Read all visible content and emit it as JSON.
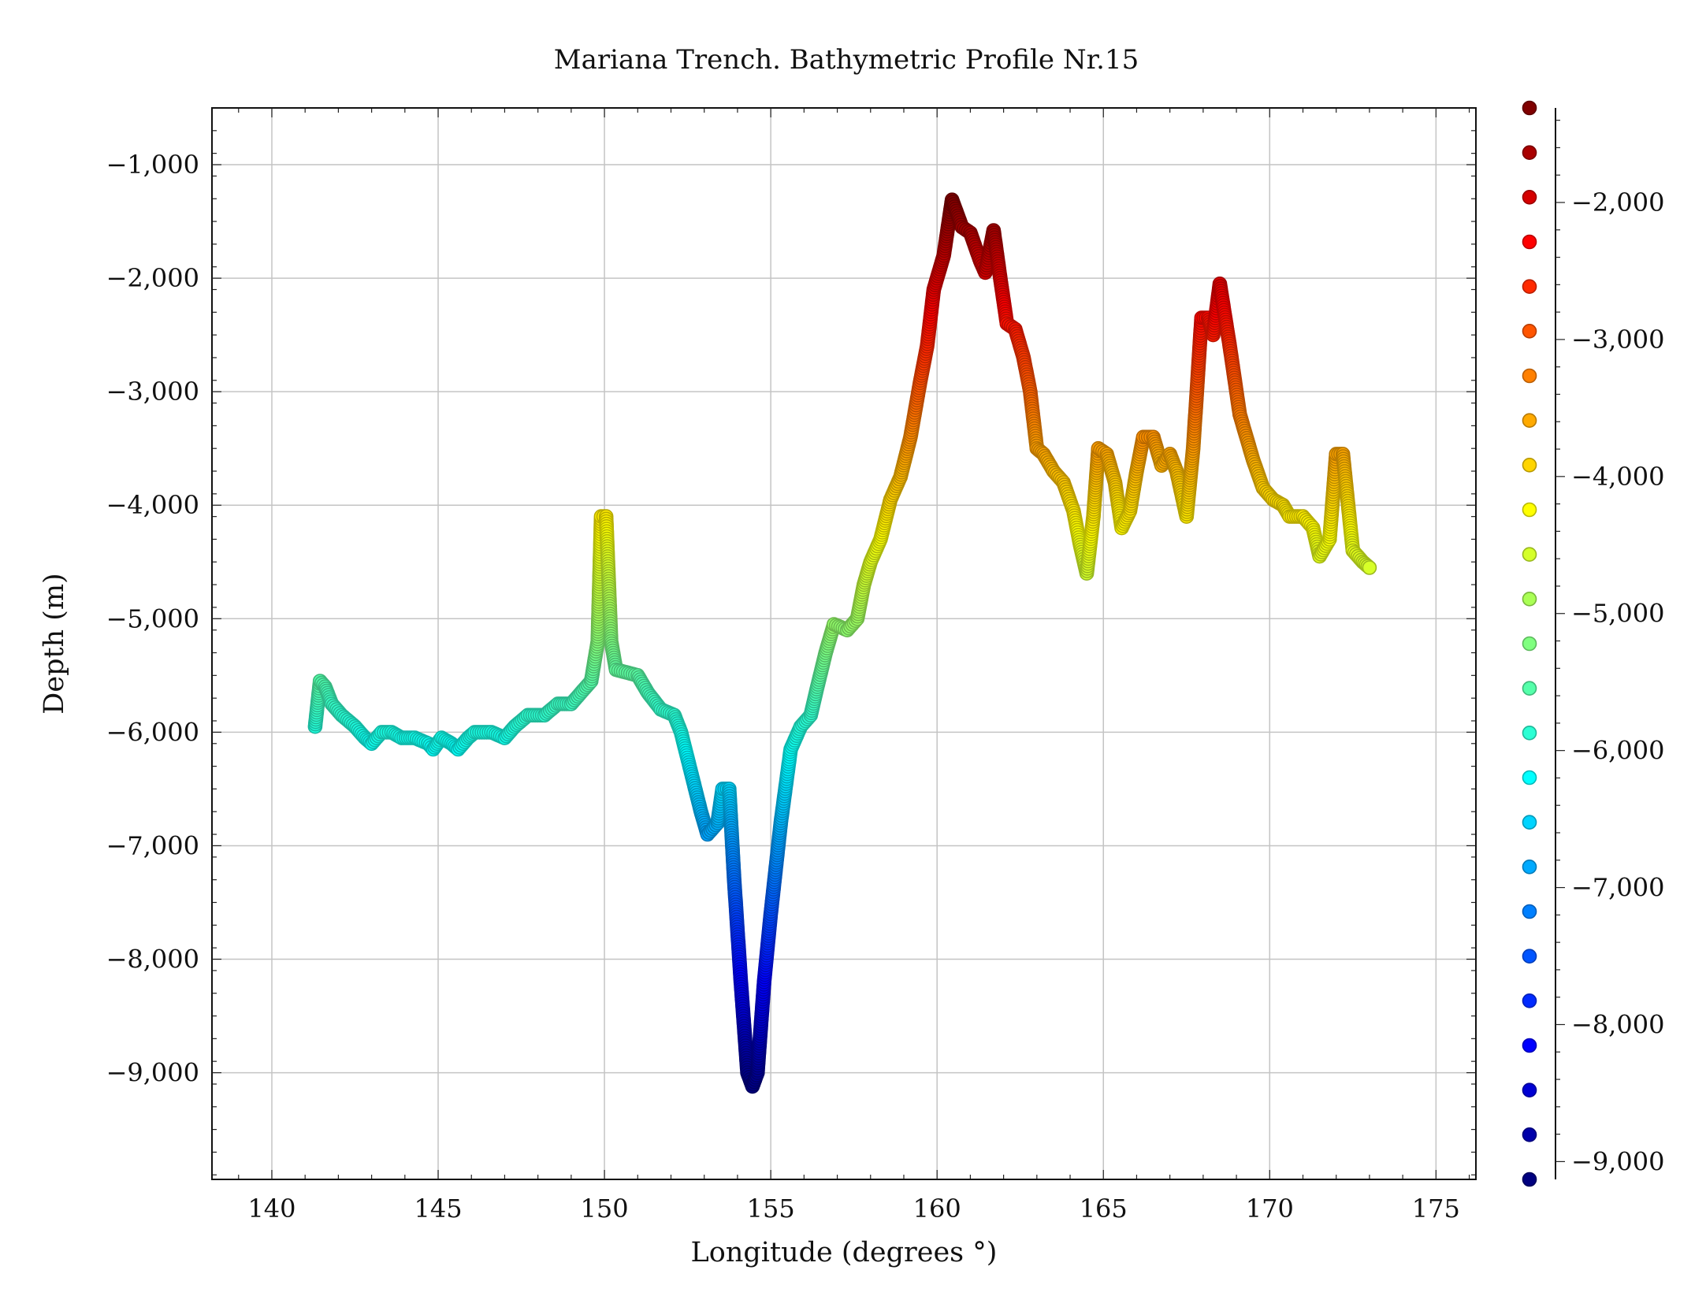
{
  "chart_data": {
    "type": "scatter",
    "title": "Mariana Trench. Bathymetric Profile Nr.15",
    "xlabel": "Longitude (degrees °)",
    "ylabel": "Depth (m)",
    "xlim": [
      138.2,
      176.2
    ],
    "ylim": [
      -9940,
      -500
    ],
    "xticks": [
      140,
      145,
      150,
      155,
      160,
      165,
      170,
      175
    ],
    "yticks": [
      -1000,
      -2000,
      -3000,
      -4000,
      -5000,
      -6000,
      -7000,
      -8000,
      -9000
    ],
    "xtick_labels": [
      "140",
      "145",
      "150",
      "155",
      "160",
      "165",
      "170",
      "175"
    ],
    "ytick_labels": [
      "−1,000",
      "−2,000",
      "−3,000",
      "−4,000",
      "−5,000",
      "−6,000",
      "−7,000",
      "−8,000",
      "−9,000"
    ],
    "grid": true,
    "colorbar": {
      "range": [
        -9130,
        -1310
      ],
      "ticks": [
        -2000,
        -3000,
        -4000,
        -5000,
        -6000,
        -7000,
        -8000,
        -9000
      ],
      "tick_labels": [
        "−2,000",
        "−3,000",
        "−4,000",
        "−5,000",
        "−6,000",
        "−7,000",
        "−8,000",
        "−9,000"
      ],
      "colormap": "jet"
    },
    "profile": [
      [
        141.3,
        -5950
      ],
      [
        141.45,
        -5550
      ],
      [
        141.6,
        -5600
      ],
      [
        141.8,
        -5750
      ],
      [
        142.1,
        -5850
      ],
      [
        142.5,
        -5950
      ],
      [
        142.8,
        -6050
      ],
      [
        143.0,
        -6100
      ],
      [
        143.3,
        -6000
      ],
      [
        143.6,
        -6000
      ],
      [
        143.9,
        -6050
      ],
      [
        144.3,
        -6050
      ],
      [
        144.7,
        -6100
      ],
      [
        144.85,
        -6150
      ],
      [
        145.1,
        -6050
      ],
      [
        145.4,
        -6100
      ],
      [
        145.6,
        -6150
      ],
      [
        145.9,
        -6050
      ],
      [
        146.1,
        -6000
      ],
      [
        146.6,
        -6000
      ],
      [
        147.0,
        -6050
      ],
      [
        147.3,
        -5950
      ],
      [
        147.7,
        -5850
      ],
      [
        148.2,
        -5850
      ],
      [
        148.6,
        -5750
      ],
      [
        149.0,
        -5750
      ],
      [
        149.3,
        -5650
      ],
      [
        149.6,
        -5550
      ],
      [
        149.8,
        -5200
      ],
      [
        149.9,
        -4100
      ],
      [
        150.05,
        -4100
      ],
      [
        150.2,
        -5200
      ],
      [
        150.35,
        -5450
      ],
      [
        151.0,
        -5500
      ],
      [
        151.3,
        -5650
      ],
      [
        151.7,
        -5800
      ],
      [
        152.1,
        -5850
      ],
      [
        152.3,
        -6000
      ],
      [
        152.6,
        -6350
      ],
      [
        152.9,
        -6700
      ],
      [
        153.1,
        -6900
      ],
      [
        153.4,
        -6800
      ],
      [
        153.55,
        -6500
      ],
      [
        153.75,
        -6500
      ],
      [
        153.9,
        -7300
      ],
      [
        154.1,
        -8200
      ],
      [
        154.3,
        -9000
      ],
      [
        154.45,
        -9120
      ],
      [
        154.6,
        -9000
      ],
      [
        154.8,
        -8200
      ],
      [
        155.0,
        -7600
      ],
      [
        155.3,
        -6800
      ],
      [
        155.6,
        -6150
      ],
      [
        155.9,
        -5950
      ],
      [
        156.2,
        -5850
      ],
      [
        156.4,
        -5600
      ],
      [
        156.65,
        -5300
      ],
      [
        156.9,
        -5050
      ],
      [
        157.3,
        -5100
      ],
      [
        157.6,
        -5000
      ],
      [
        157.8,
        -4700
      ],
      [
        158.0,
        -4500
      ],
      [
        158.3,
        -4300
      ],
      [
        158.6,
        -3950
      ],
      [
        158.9,
        -3750
      ],
      [
        159.2,
        -3400
      ],
      [
        159.5,
        -2900
      ],
      [
        159.7,
        -2600
      ],
      [
        159.9,
        -2100
      ],
      [
        160.2,
        -1800
      ],
      [
        160.45,
        -1310
      ],
      [
        160.75,
        -1550
      ],
      [
        161.0,
        -1600
      ],
      [
        161.3,
        -1850
      ],
      [
        161.45,
        -1950
      ],
      [
        161.7,
        -1580
      ],
      [
        161.9,
        -2000
      ],
      [
        162.1,
        -2400
      ],
      [
        162.35,
        -2450
      ],
      [
        162.6,
        -2700
      ],
      [
        162.8,
        -3000
      ],
      [
        163.0,
        -3500
      ],
      [
        163.2,
        -3550
      ],
      [
        163.5,
        -3700
      ],
      [
        163.8,
        -3800
      ],
      [
        164.1,
        -4050
      ],
      [
        164.3,
        -4350
      ],
      [
        164.5,
        -4600
      ],
      [
        164.7,
        -4100
      ],
      [
        164.85,
        -3500
      ],
      [
        165.1,
        -3550
      ],
      [
        165.35,
        -3800
      ],
      [
        165.55,
        -4200
      ],
      [
        165.8,
        -4050
      ],
      [
        166.0,
        -3700
      ],
      [
        166.2,
        -3400
      ],
      [
        166.5,
        -3400
      ],
      [
        166.75,
        -3650
      ],
      [
        167.0,
        -3550
      ],
      [
        167.2,
        -3700
      ],
      [
        167.5,
        -4100
      ],
      [
        167.7,
        -3500
      ],
      [
        167.95,
        -2350
      ],
      [
        168.15,
        -2350
      ],
      [
        168.3,
        -2500
      ],
      [
        168.5,
        -2050
      ],
      [
        168.8,
        -2600
      ],
      [
        169.1,
        -3200
      ],
      [
        169.5,
        -3600
      ],
      [
        169.8,
        -3850
      ],
      [
        170.1,
        -3950
      ],
      [
        170.4,
        -4000
      ],
      [
        170.6,
        -4100
      ],
      [
        171.0,
        -4100
      ],
      [
        171.3,
        -4200
      ],
      [
        171.5,
        -4450
      ],
      [
        171.8,
        -4300
      ],
      [
        172.0,
        -3550
      ],
      [
        172.2,
        -3550
      ],
      [
        172.5,
        -4400
      ],
      [
        172.8,
        -4500
      ],
      [
        173.0,
        -4550
      ]
    ]
  }
}
